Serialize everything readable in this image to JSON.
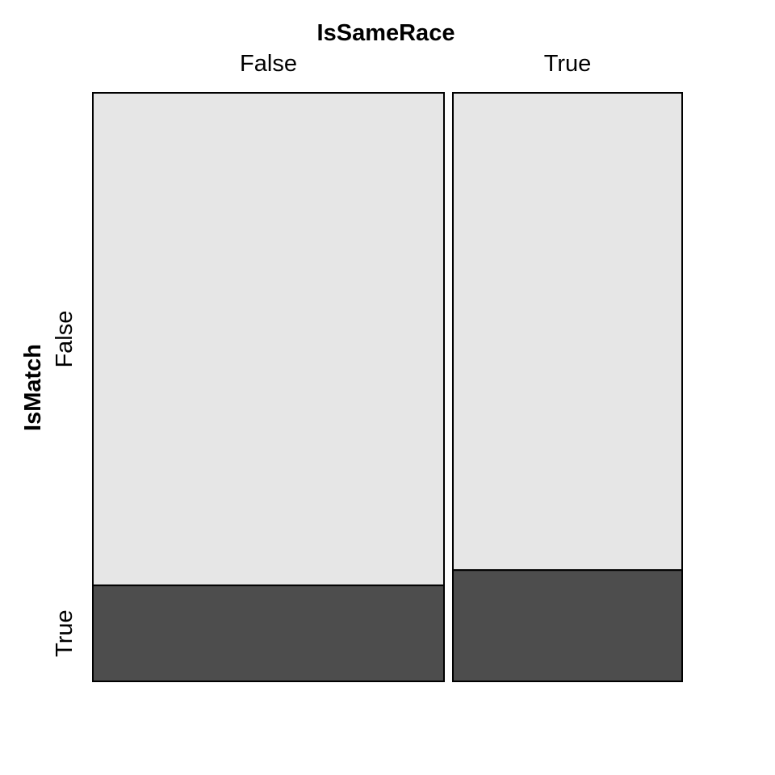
{
  "chart_data": {
    "type": "mosaic",
    "x_variable": "IsSameRace",
    "y_variable": "IsMatch",
    "x_levels": [
      "False",
      "True"
    ],
    "y_levels": [
      "False",
      "True"
    ],
    "x_proportions": [
      0.605,
      0.395
    ],
    "conditional_y_proportions": {
      "False": [
        0.837,
        0.163
      ],
      "True": [
        0.811,
        0.189
      ]
    },
    "colors": {
      "False": "#e6e6e6",
      "True": "#4d4d4d"
    },
    "legend": "none",
    "grid": false
  }
}
